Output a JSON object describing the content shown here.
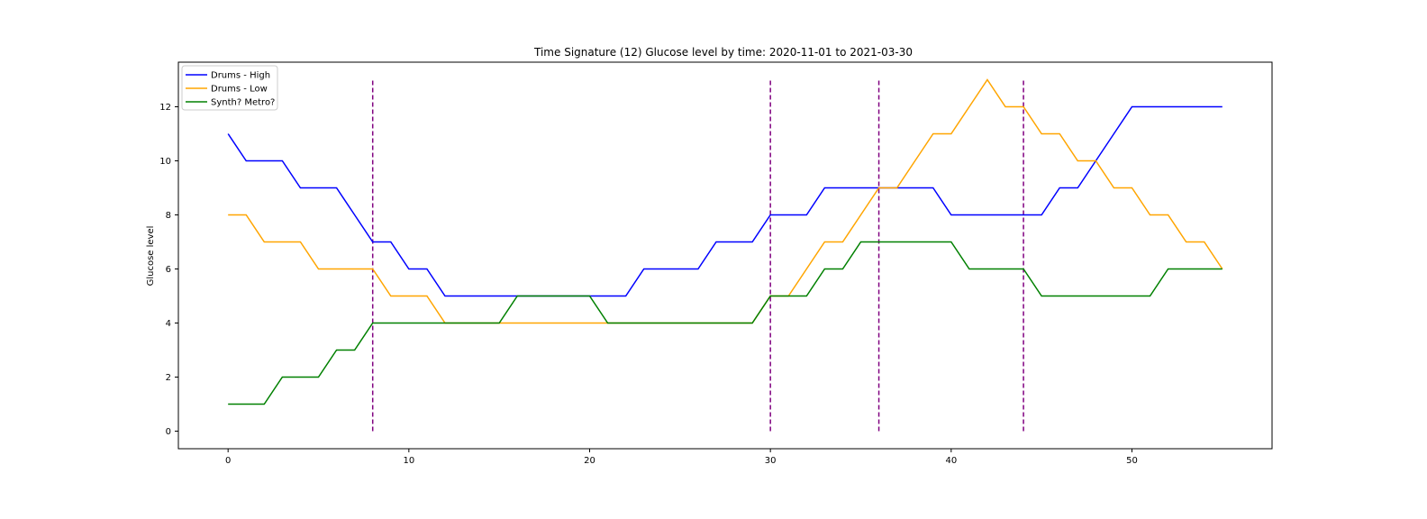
{
  "chart_data": {
    "type": "line",
    "title": "Time Signature (12) Glucose level by time: 2020-11-01 to 2021-03-30",
    "xlabel": "",
    "ylabel": "Glucose level",
    "xlim": [
      -2.75,
      57.75
    ],
    "ylim": [
      -0.65,
      13.65
    ],
    "xticks": [
      0,
      10,
      20,
      30,
      40,
      50
    ],
    "yticks": [
      0,
      2,
      4,
      6,
      8,
      10,
      12
    ],
    "grid": false,
    "legend": "top-left",
    "series": [
      {
        "name": "Drums - High",
        "color": "#0000ff",
        "values": [
          11,
          10,
          10,
          10,
          9,
          9,
          9,
          8,
          7,
          7,
          6,
          6,
          5,
          5,
          5,
          5,
          5,
          5,
          5,
          5,
          5,
          5,
          5,
          6,
          6,
          6,
          6,
          7,
          7,
          7,
          8,
          8,
          8,
          9,
          9,
          9,
          9,
          9,
          9,
          9,
          8,
          8,
          8,
          8,
          8,
          8,
          9,
          9,
          10,
          11,
          12,
          12,
          12,
          12,
          12,
          12
        ]
      },
      {
        "name": "Drums - Low",
        "color": "#ffa500",
        "values": [
          8,
          8,
          7,
          7,
          7,
          6,
          6,
          6,
          6,
          5,
          5,
          5,
          4,
          4,
          4,
          4,
          4,
          4,
          4,
          4,
          4,
          4,
          4,
          4,
          4,
          4,
          4,
          4,
          4,
          4,
          5,
          5,
          6,
          7,
          7,
          8,
          9,
          9,
          10,
          11,
          11,
          12,
          13,
          12,
          12,
          11,
          11,
          10,
          10,
          9,
          9,
          8,
          8,
          7,
          7,
          6
        ]
      },
      {
        "name": "Synth? Metro?",
        "color": "#008000",
        "values": [
          1,
          1,
          1,
          2,
          2,
          2,
          3,
          3,
          4,
          4,
          4,
          4,
          4,
          4,
          4,
          4,
          5,
          5,
          5,
          5,
          5,
          4,
          4,
          4,
          4,
          4,
          4,
          4,
          4,
          4,
          5,
          5,
          5,
          6,
          6,
          7,
          7,
          7,
          7,
          7,
          7,
          6,
          6,
          6,
          6,
          5,
          5,
          5,
          5,
          5,
          5,
          5,
          6,
          6,
          6,
          6
        ]
      }
    ],
    "vlines": {
      "color": "#800080",
      "style": "dashed",
      "x": [
        8,
        30,
        36,
        44
      ],
      "ymin": 0,
      "ymax": 13
    }
  }
}
